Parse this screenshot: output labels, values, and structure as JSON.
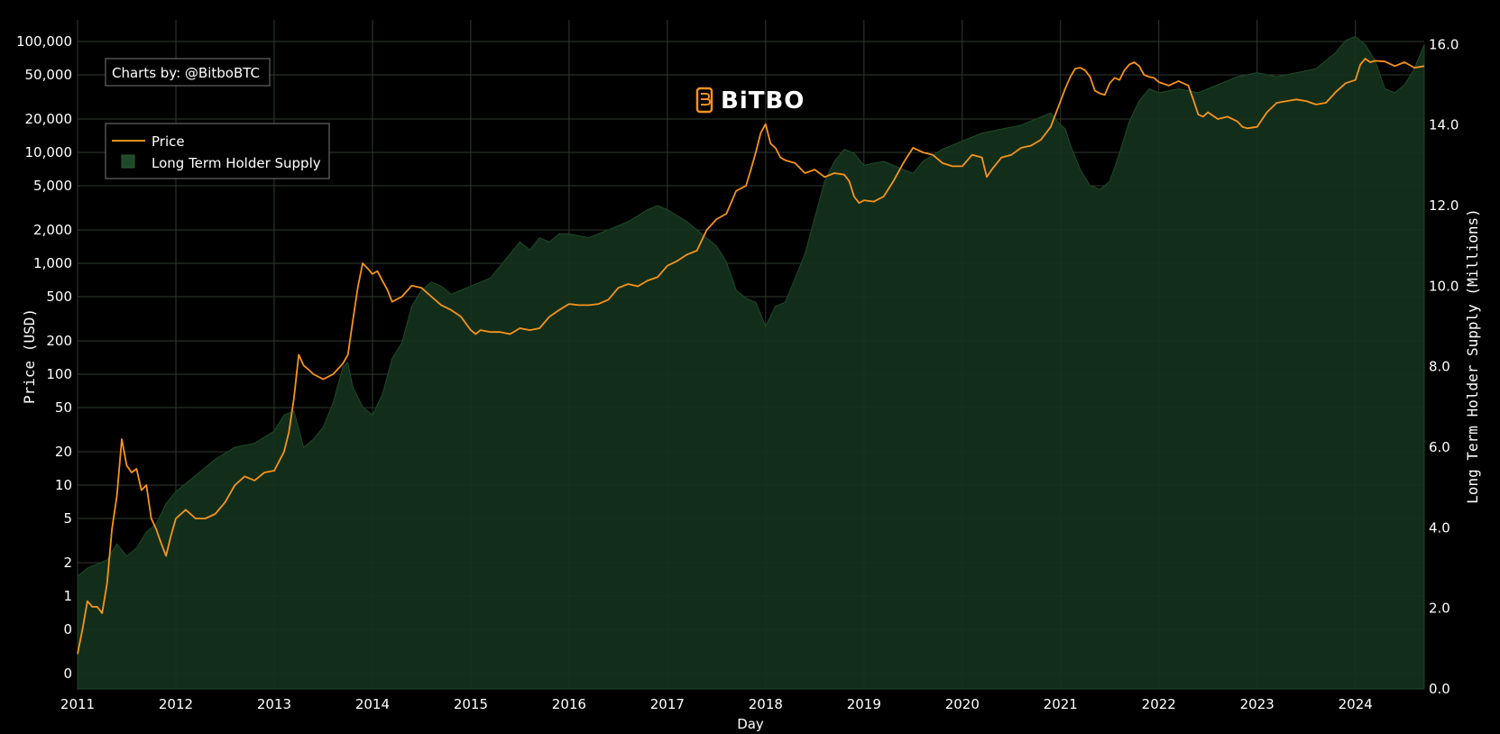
{
  "watermark": {
    "credit": "Charts by: @BitboBTC",
    "logo_text": "BiTBO"
  },
  "colors": {
    "price": "#f7931a",
    "supply_fill": "#14321c",
    "supply_edge": "#1e4a28",
    "grid": "#2f3a2f",
    "background": "#000000"
  },
  "chart_data": {
    "type": "line",
    "xlabel": "Day",
    "ylabel_left": "Price (USD)",
    "ylabel_right": "Long Term Holder Supply (Millions)",
    "x_range": [
      2011,
      2024.7
    ],
    "x_ticks": [
      2011,
      2012,
      2013,
      2014,
      2015,
      2016,
      2017,
      2018,
      2019,
      2020,
      2021,
      2022,
      2023,
      2024
    ],
    "x_tick_labels": [
      "2011",
      "2012",
      "2013",
      "2014",
      "2015",
      "2016",
      "2017",
      "2018",
      "2019",
      "2020",
      "2021",
      "2022",
      "2023",
      "2024"
    ],
    "left_axis": {
      "scale": "log",
      "tick_labels": [
        "0",
        "0",
        "1",
        "2",
        "5",
        "10",
        "20",
        "50",
        "100",
        "200",
        "500",
        "1,000",
        "2,000",
        "5,000",
        "10,000",
        "20,000",
        "50,000",
        "100,000"
      ],
      "tick_values": [
        0.2,
        0.5,
        1,
        2,
        5,
        10,
        20,
        50,
        100,
        200,
        500,
        1000,
        2000,
        5000,
        10000,
        20000,
        50000,
        100000
      ]
    },
    "right_axis": {
      "scale": "linear",
      "range": [
        0,
        16.5
      ],
      "tick_values": [
        0,
        2,
        4,
        6,
        8,
        10,
        12,
        14,
        16
      ],
      "tick_labels": [
        "0.0",
        "2.0",
        "4.0",
        "6.0",
        "8.0",
        "10.0",
        "12.0",
        "14.0",
        "16.0"
      ]
    },
    "legend": {
      "placement": "top-left",
      "entries": [
        "Price",
        "Long Term Holder Supply"
      ]
    },
    "series": [
      {
        "name": "Price",
        "axis": "left",
        "style": "line",
        "x": [
          2011.0,
          2011.05,
          2011.1,
          2011.15,
          2011.2,
          2011.25,
          2011.3,
          2011.35,
          2011.4,
          2011.45,
          2011.5,
          2011.55,
          2011.6,
          2011.65,
          2011.7,
          2011.75,
          2011.8,
          2011.85,
          2011.9,
          2011.95,
          2012.0,
          2012.1,
          2012.2,
          2012.3,
          2012.4,
          2012.5,
          2012.6,
          2012.7,
          2012.8,
          2012.9,
          2013.0,
          2013.1,
          2013.15,
          2013.2,
          2013.25,
          2013.3,
          2013.35,
          2013.4,
          2013.5,
          2013.6,
          2013.7,
          2013.75,
          2013.8,
          2013.85,
          2013.9,
          2013.95,
          2014.0,
          2014.05,
          2014.1,
          2014.15,
          2014.2,
          2014.3,
          2014.4,
          2014.5,
          2014.6,
          2014.7,
          2014.8,
          2014.9,
          2015.0,
          2015.05,
          2015.1,
          2015.2,
          2015.3,
          2015.4,
          2015.5,
          2015.6,
          2015.7,
          2015.8,
          2015.9,
          2016.0,
          2016.1,
          2016.2,
          2016.3,
          2016.4,
          2016.5,
          2016.6,
          2016.7,
          2016.8,
          2016.9,
          2017.0,
          2017.1,
          2017.2,
          2017.3,
          2017.4,
          2017.5,
          2017.6,
          2017.7,
          2017.8,
          2017.85,
          2017.9,
          2017.95,
          2018.0,
          2018.05,
          2018.1,
          2018.15,
          2018.2,
          2018.3,
          2018.4,
          2018.5,
          2018.6,
          2018.7,
          2018.8,
          2018.85,
          2018.9,
          2018.95,
          2019.0,
          2019.1,
          2019.2,
          2019.3,
          2019.4,
          2019.5,
          2019.6,
          2019.7,
          2019.8,
          2019.9,
          2020.0,
          2020.1,
          2020.2,
          2020.25,
          2020.3,
          2020.4,
          2020.5,
          2020.6,
          2020.7,
          2020.8,
          2020.9,
          2021.0,
          2021.05,
          2021.1,
          2021.15,
          2021.2,
          2021.25,
          2021.3,
          2021.35,
          2021.4,
          2021.45,
          2021.5,
          2021.55,
          2021.6,
          2021.65,
          2021.7,
          2021.75,
          2021.8,
          2021.85,
          2021.9,
          2021.95,
          2022.0,
          2022.1,
          2022.2,
          2022.3,
          2022.35,
          2022.4,
          2022.45,
          2022.5,
          2022.6,
          2022.7,
          2022.8,
          2022.85,
          2022.9,
          2023.0,
          2023.1,
          2023.2,
          2023.3,
          2023.4,
          2023.5,
          2023.6,
          2023.7,
          2023.8,
          2023.9,
          2024.0,
          2024.05,
          2024.1,
          2024.15,
          2024.2,
          2024.3,
          2024.4,
          2024.5,
          2024.6,
          2024.7
        ],
        "y": [
          0.3,
          0.5,
          0.9,
          0.8,
          0.8,
          0.7,
          1.3,
          4.0,
          8.0,
          26,
          15,
          13,
          14,
          9,
          10,
          5,
          4,
          3,
          2.3,
          3.5,
          5.0,
          6.0,
          5.0,
          5.0,
          5.5,
          7.0,
          10,
          12,
          11,
          13,
          13.5,
          20,
          30,
          60,
          150,
          120,
          110,
          100,
          90,
          100,
          125,
          150,
          300,
          600,
          1000,
          900,
          800,
          850,
          700,
          580,
          450,
          500,
          630,
          600,
          500,
          420,
          380,
          330,
          250,
          230,
          250,
          240,
          240,
          230,
          260,
          250,
          260,
          330,
          380,
          430,
          420,
          420,
          430,
          470,
          600,
          650,
          620,
          700,
          750,
          950,
          1050,
          1200,
          1300,
          2000,
          2500,
          2800,
          4500,
          5000,
          7000,
          10000,
          15000,
          18000,
          12000,
          11000,
          9000,
          8500,
          8000,
          6500,
          7000,
          6000,
          6500,
          6300,
          5500,
          4000,
          3500,
          3700,
          3600,
          4000,
          5500,
          8000,
          11000,
          10000,
          9500,
          8000,
          7500,
          7500,
          9500,
          9000,
          6000,
          7000,
          9000,
          9500,
          11000,
          11500,
          13000,
          17000,
          29000,
          38000,
          48000,
          57000,
          58000,
          55000,
          48000,
          36000,
          34000,
          33000,
          42000,
          47000,
          45000,
          55000,
          62000,
          65000,
          60000,
          50000,
          48000,
          47000,
          43000,
          40000,
          44000,
          40000,
          30000,
          22000,
          21000,
          23000,
          20000,
          21000,
          19000,
          17000,
          16500,
          17000,
          23000,
          28000,
          29000,
          30000,
          29000,
          27000,
          28000,
          35000,
          42000,
          45000,
          62000,
          70000,
          65000,
          67000,
          66000,
          60000,
          65000,
          58000,
          60000
        ]
      },
      {
        "name": "Long Term Holder Supply",
        "axis": "right",
        "style": "area",
        "x": [
          2011.0,
          2011.1,
          2011.2,
          2011.3,
          2011.35,
          2011.4,
          2011.5,
          2011.6,
          2011.7,
          2011.8,
          2011.9,
          2012.0,
          2012.2,
          2012.4,
          2012.6,
          2012.8,
          2013.0,
          2013.1,
          2013.2,
          2013.3,
          2013.4,
          2013.5,
          2013.6,
          2013.7,
          2013.75,
          2013.8,
          2013.9,
          2014.0,
          2014.1,
          2014.2,
          2014.3,
          2014.4,
          2014.5,
          2014.6,
          2014.7,
          2014.8,
          2014.9,
          2015.0,
          2015.2,
          2015.4,
          2015.5,
          2015.6,
          2015.7,
          2015.8,
          2015.9,
          2016.0,
          2016.2,
          2016.4,
          2016.6,
          2016.8,
          2016.9,
          2017.0,
          2017.2,
          2017.4,
          2017.5,
          2017.6,
          2017.7,
          2017.8,
          2017.9,
          2018.0,
          2018.1,
          2018.2,
          2018.3,
          2018.4,
          2018.5,
          2018.6,
          2018.7,
          2018.8,
          2018.9,
          2019.0,
          2019.2,
          2019.4,
          2019.5,
          2019.6,
          2019.8,
          2020.0,
          2020.2,
          2020.4,
          2020.6,
          2020.8,
          2020.9,
          2021.0,
          2021.05,
          2021.1,
          2021.2,
          2021.3,
          2021.4,
          2021.45,
          2021.5,
          2021.6,
          2021.7,
          2021.8,
          2021.9,
          2022.0,
          2022.2,
          2022.4,
          2022.6,
          2022.8,
          2023.0,
          2023.2,
          2023.4,
          2023.6,
          2023.8,
          2023.9,
          2024.0,
          2024.1,
          2024.2,
          2024.3,
          2024.4,
          2024.5,
          2024.6,
          2024.7
        ],
        "y": [
          2.8,
          3.0,
          3.1,
          3.2,
          3.4,
          3.6,
          3.3,
          3.5,
          3.9,
          4.1,
          4.6,
          4.9,
          5.3,
          5.7,
          6.0,
          6.1,
          6.4,
          6.8,
          6.9,
          6.0,
          6.2,
          6.5,
          7.1,
          8.0,
          8.1,
          7.5,
          7.0,
          6.8,
          7.3,
          8.2,
          8.6,
          9.5,
          9.9,
          10.1,
          10.0,
          9.8,
          9.9,
          10.0,
          10.2,
          10.8,
          11.1,
          10.9,
          11.2,
          11.1,
          11.3,
          11.3,
          11.2,
          11.4,
          11.6,
          11.9,
          12.0,
          11.9,
          11.6,
          11.2,
          11.0,
          10.6,
          9.9,
          9.7,
          9.6,
          9.0,
          9.5,
          9.6,
          10.2,
          10.8,
          11.7,
          12.6,
          13.1,
          13.4,
          13.3,
          13.0,
          13.1,
          12.9,
          12.8,
          13.1,
          13.4,
          13.6,
          13.8,
          13.9,
          14.0,
          14.2,
          14.3,
          14.0,
          13.9,
          13.5,
          12.9,
          12.5,
          12.4,
          12.5,
          12.6,
          13.3,
          14.1,
          14.6,
          14.9,
          14.8,
          14.9,
          14.8,
          15.0,
          15.2,
          15.3,
          15.2,
          15.3,
          15.4,
          15.8,
          16.1,
          16.2,
          16.0,
          15.6,
          14.9,
          14.8,
          15.0,
          15.4,
          16.0
        ]
      }
    ]
  }
}
